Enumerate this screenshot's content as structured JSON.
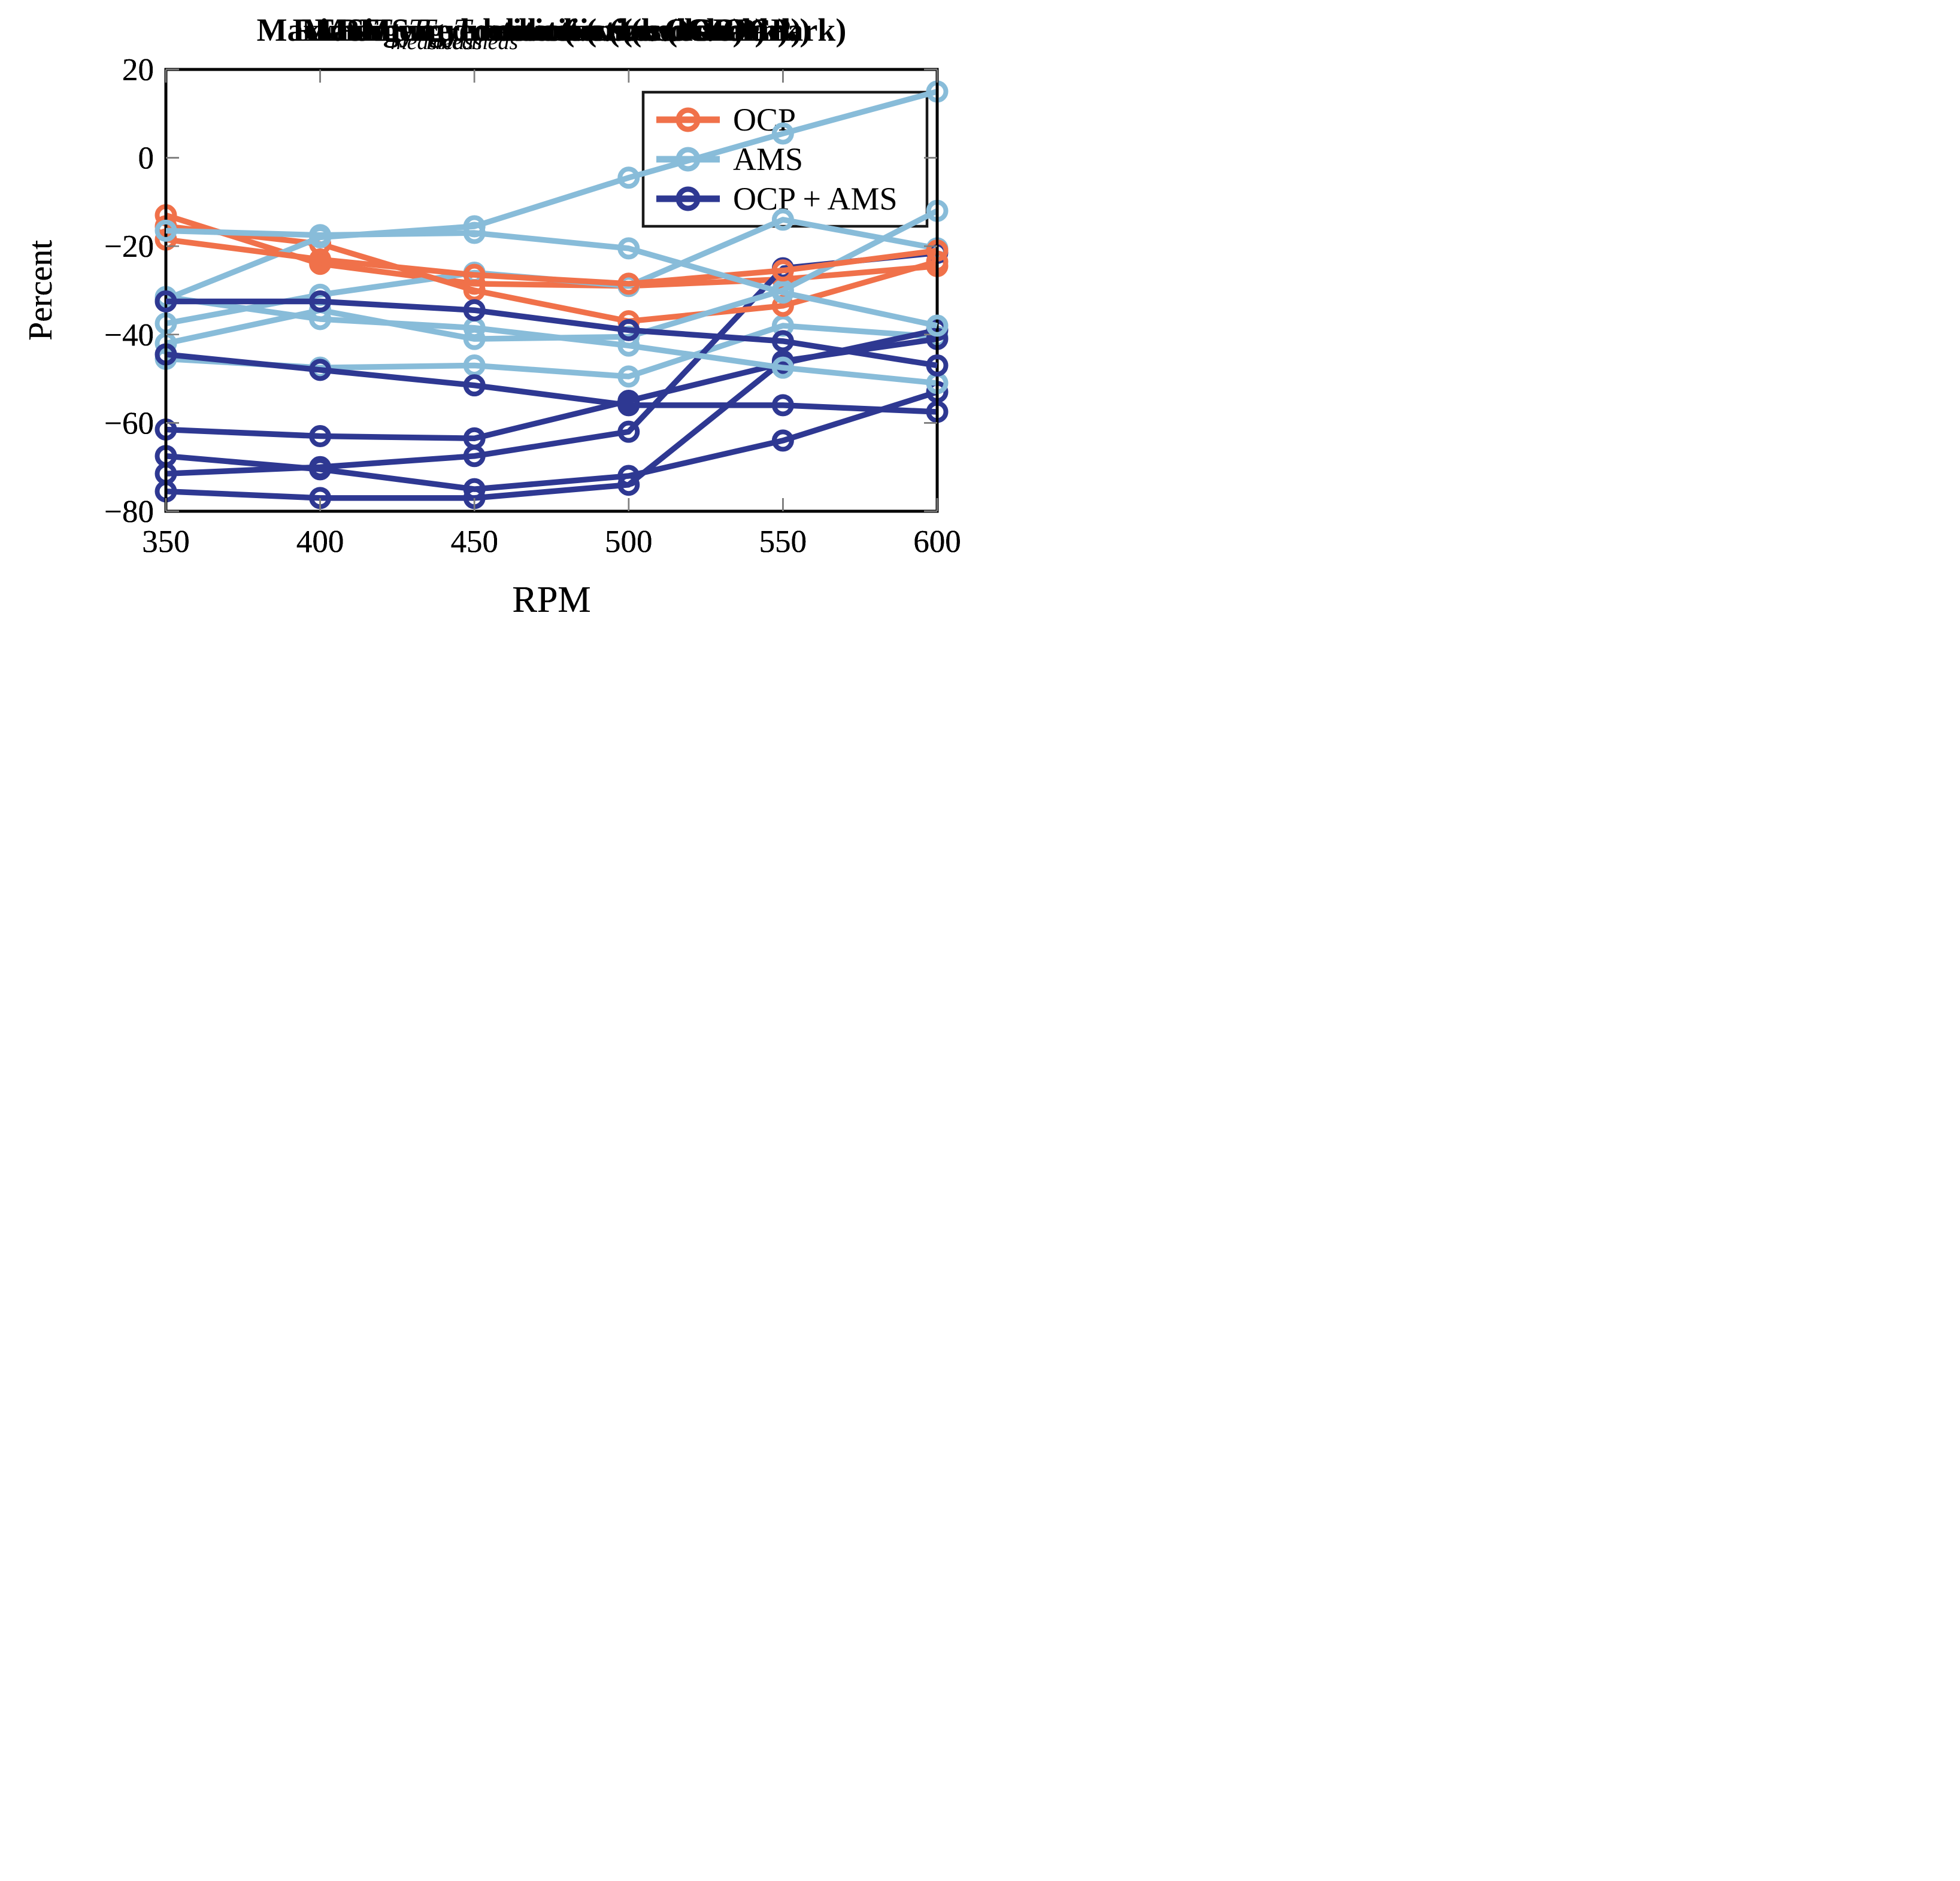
{
  "figure": {
    "background": "#ffffff",
    "axis_color": "#000000",
    "tick_color": "#7f7f7f",
    "series_colors": {
      "OCP": "#F0714A",
      "AMS": "#88BCD9",
      "OCP + AMS": "#2E3892"
    },
    "ylabel": "Percent",
    "xlabel": "RPM",
    "legend_entries": [
      "OCP",
      "AMS",
      "OCP + AMS"
    ]
  },
  "chart_data": [
    {
      "type": "line",
      "title_parts": [
        {
          "text": "RMS ",
          "bold": true
        },
        {
          "text": "T",
          "italic": true
        },
        {
          "text": "meas",
          "italic": true,
          "sub": true
        },
        {
          "text": " reduction (vs. benchmark)",
          "bold": true
        }
      ],
      "title_plain": "RMS Tmeas reduction (vs. benchmark)",
      "xlabel": "RPM",
      "ylabel": "Percent",
      "x": [
        350,
        400,
        450,
        500,
        550,
        600
      ],
      "xlim": [
        350,
        600
      ],
      "ylim": [
        -80,
        20
      ],
      "xticks": [
        350,
        400,
        450,
        500,
        550,
        600
      ],
      "xtick_labels": [
        "350",
        "400",
        "450",
        "500",
        "550",
        "600"
      ],
      "yticks": [
        20,
        0,
        -20,
        -40,
        -60,
        -80
      ],
      "ytick_labels": [
        "20",
        "0",
        "−20",
        "−40",
        "−60",
        "−80"
      ],
      "grid": false,
      "legend": {
        "visible": true,
        "position": "top-right",
        "entries": [
          "OCP",
          "AMS",
          "OCP + AMS"
        ]
      },
      "series": [
        {
          "name": "OCP",
          "color": "#F0714A",
          "values": [
            -13,
            -24,
            -28.5,
            -29,
            -27.5,
            -24.5
          ]
        },
        {
          "name": "AMS",
          "color": "#88BCD9",
          "values": [
            -45.5,
            -47.5,
            -47,
            -49.5,
            -38,
            -40.5
          ]
        },
        {
          "name": "OCP + AMS",
          "color": "#2E3892",
          "values": [
            -75.5,
            -77,
            -77,
            -74,
            -46,
            -41
          ]
        }
      ]
    },
    {
      "type": "line",
      "title_parts": [
        {
          "text": "RMS ",
          "bold": true
        },
        {
          "text": "T",
          "italic": true
        },
        {
          "text": "meas",
          "italic": true,
          "sub": true
        },
        {
          "text": " reduction (vs. OCP)",
          "bold": true
        }
      ],
      "title_plain": "RMS Tmeas reduction (vs. OCP)",
      "xlabel": "RPM",
      "ylabel": "Percent",
      "x": [
        350,
        400,
        450,
        500,
        550,
        600
      ],
      "xlim": [
        350,
        600
      ],
      "ylim": [
        -80,
        20
      ],
      "xticks": [
        350,
        400,
        450,
        500,
        550,
        600
      ],
      "xtick_labels": [
        "350",
        "400",
        "450",
        "500",
        "550",
        "600"
      ],
      "yticks": [
        20,
        0,
        -20,
        -40,
        -60,
        -80
      ],
      "ytick_labels": [
        "20",
        "0",
        "−20",
        "−40",
        "−60",
        "−80"
      ],
      "grid": false,
      "legend": {
        "visible": false
      },
      "series": [
        {
          "name": "AMS",
          "color": "#88BCD9",
          "values": [
            -37.5,
            -31,
            -26,
            -29,
            -14,
            -20.5
          ]
        },
        {
          "name": "OCP + AMS",
          "color": "#2E3892",
          "values": [
            -71.5,
            -70,
            -67.5,
            -62,
            -25,
            -21.5
          ]
        }
      ]
    },
    {
      "type": "line",
      "title_parts": [
        {
          "text": "Maximum ",
          "bold": true
        },
        {
          "text": "T",
          "italic": true
        },
        {
          "text": "meas",
          "italic": true,
          "sub": true
        },
        {
          "text": " reduction (vs. benchmark)",
          "bold": true
        }
      ],
      "title_plain": "Maximum Tmeas reduction (vs. benchmark)",
      "xlabel": "RPM",
      "ylabel": "Percent",
      "x": [
        350,
        400,
        450,
        500,
        550,
        600
      ],
      "xlim": [
        350,
        600
      ],
      "ylim": [
        -80,
        20
      ],
      "xticks": [
        350,
        400,
        450,
        500,
        550,
        600
      ],
      "xtick_labels": [
        "350",
        "400",
        "450",
        "500",
        "550",
        "600"
      ],
      "yticks": [
        20,
        0,
        -20,
        -40,
        -60,
        -80
      ],
      "ytick_labels": [
        "20",
        "0",
        "−20",
        "−40",
        "−60",
        "−80"
      ],
      "grid": false,
      "legend": {
        "visible": false
      },
      "series": [
        {
          "name": "OCP",
          "color": "#F0714A",
          "values": [
            -15.5,
            -19.5,
            -30,
            -37,
            -33.5,
            -23.5
          ]
        },
        {
          "name": "AMS",
          "color": "#88BCD9",
          "values": [
            -42,
            -34.5,
            -41,
            -40.5,
            -30,
            -12
          ]
        },
        {
          "name": "OCP + AMS",
          "color": "#2E3892",
          "values": [
            -67.5,
            -70.5,
            -75,
            -72,
            -64,
            -53
          ]
        }
      ]
    },
    {
      "type": "line",
      "title_parts": [
        {
          "text": "Maximum ",
          "bold": true
        },
        {
          "text": "T",
          "italic": true
        },
        {
          "text": "meas",
          "italic": true,
          "sub": true
        },
        {
          "text": " reduction (vs. OCP)",
          "bold": true
        }
      ],
      "title_plain": "Maximum Tmeas reduction (vs. OCP)",
      "xlabel": "RPM",
      "ylabel": "Percent",
      "x": [
        350,
        400,
        450,
        500,
        550,
        600
      ],
      "xlim": [
        350,
        600
      ],
      "ylim": [
        -80,
        20
      ],
      "xticks": [
        350,
        400,
        450,
        500,
        550,
        600
      ],
      "xtick_labels": [
        "350",
        "400",
        "450",
        "500",
        "550",
        "600"
      ],
      "yticks": [
        20,
        0,
        -20,
        -40,
        -60,
        -80
      ],
      "ytick_labels": [
        "20",
        "0",
        "−20",
        "−40",
        "−60",
        "−80"
      ],
      "grid": false,
      "legend": {
        "visible": false
      },
      "series": [
        {
          "name": "AMS",
          "color": "#88BCD9",
          "values": [
            -32,
            -18,
            -15.5,
            -4.5,
            5.5,
            15
          ]
        },
        {
          "name": "OCP + AMS",
          "color": "#2E3892",
          "values": [
            -61.5,
            -63,
            -63.5,
            -55,
            -46.5,
            -39
          ]
        }
      ]
    },
    {
      "type": "line",
      "title_parts": [
        {
          "text": "Energy reduction (vs. benchmark)",
          "bold": true
        }
      ],
      "title_plain": "Energy reduction (vs. benchmark)",
      "xlabel": "RPM",
      "ylabel": "Percent",
      "x": [
        350,
        400,
        450,
        500,
        550,
        600
      ],
      "xlim": [
        350,
        600
      ],
      "ylim": [
        -80,
        20
      ],
      "xticks": [
        350,
        400,
        450,
        500,
        550,
        600
      ],
      "xtick_labels": [
        "350",
        "400",
        "450",
        "500",
        "550",
        "600"
      ],
      "yticks": [
        20,
        0,
        -20,
        -40,
        -60,
        -80
      ],
      "ytick_labels": [
        "20",
        "0",
        "−20",
        "−40",
        "−60",
        "−80"
      ],
      "grid": false,
      "legend": {
        "visible": false
      },
      "series": [
        {
          "name": "OCP",
          "color": "#F0714A",
          "values": [
            -18.5,
            -23,
            -26.5,
            -28.5,
            -25.5,
            -21
          ]
        },
        {
          "name": "AMS",
          "color": "#88BCD9",
          "values": [
            -31.5,
            -36.5,
            -38.5,
            -42.5,
            -47.5,
            -51
          ]
        },
        {
          "name": "OCP + AMS",
          "color": "#2E3892",
          "values": [
            -44.5,
            -48,
            -51.5,
            -56,
            -56,
            -57.5
          ]
        }
      ]
    },
    {
      "type": "line",
      "title_parts": [
        {
          "text": "Energy reduction (vs. OCP)",
          "bold": true
        }
      ],
      "title_plain": "Energy reduction (vs. OCP)",
      "xlabel": "RPM",
      "ylabel": "Percent",
      "x": [
        350,
        400,
        450,
        500,
        550,
        600
      ],
      "xlim": [
        350,
        600
      ],
      "ylim": [
        -80,
        20
      ],
      "xticks": [
        350,
        400,
        450,
        500,
        550,
        600
      ],
      "xtick_labels": [
        "350",
        "400",
        "450",
        "500",
        "550",
        "600"
      ],
      "yticks": [
        20,
        0,
        -20,
        -40,
        -60,
        -80
      ],
      "ytick_labels": [
        "20",
        "0",
        "−20",
        "−40",
        "−60",
        "−80"
      ],
      "grid": false,
      "legend": {
        "visible": false
      },
      "series": [
        {
          "name": "AMS",
          "color": "#88BCD9",
          "values": [
            -16.5,
            -17.5,
            -17,
            -20.5,
            -30.5,
            -38
          ]
        },
        {
          "name": "OCP + AMS",
          "color": "#2E3892",
          "values": [
            -32.5,
            -32.5,
            -34.5,
            -39,
            -41.5,
            -47
          ]
        }
      ]
    }
  ]
}
